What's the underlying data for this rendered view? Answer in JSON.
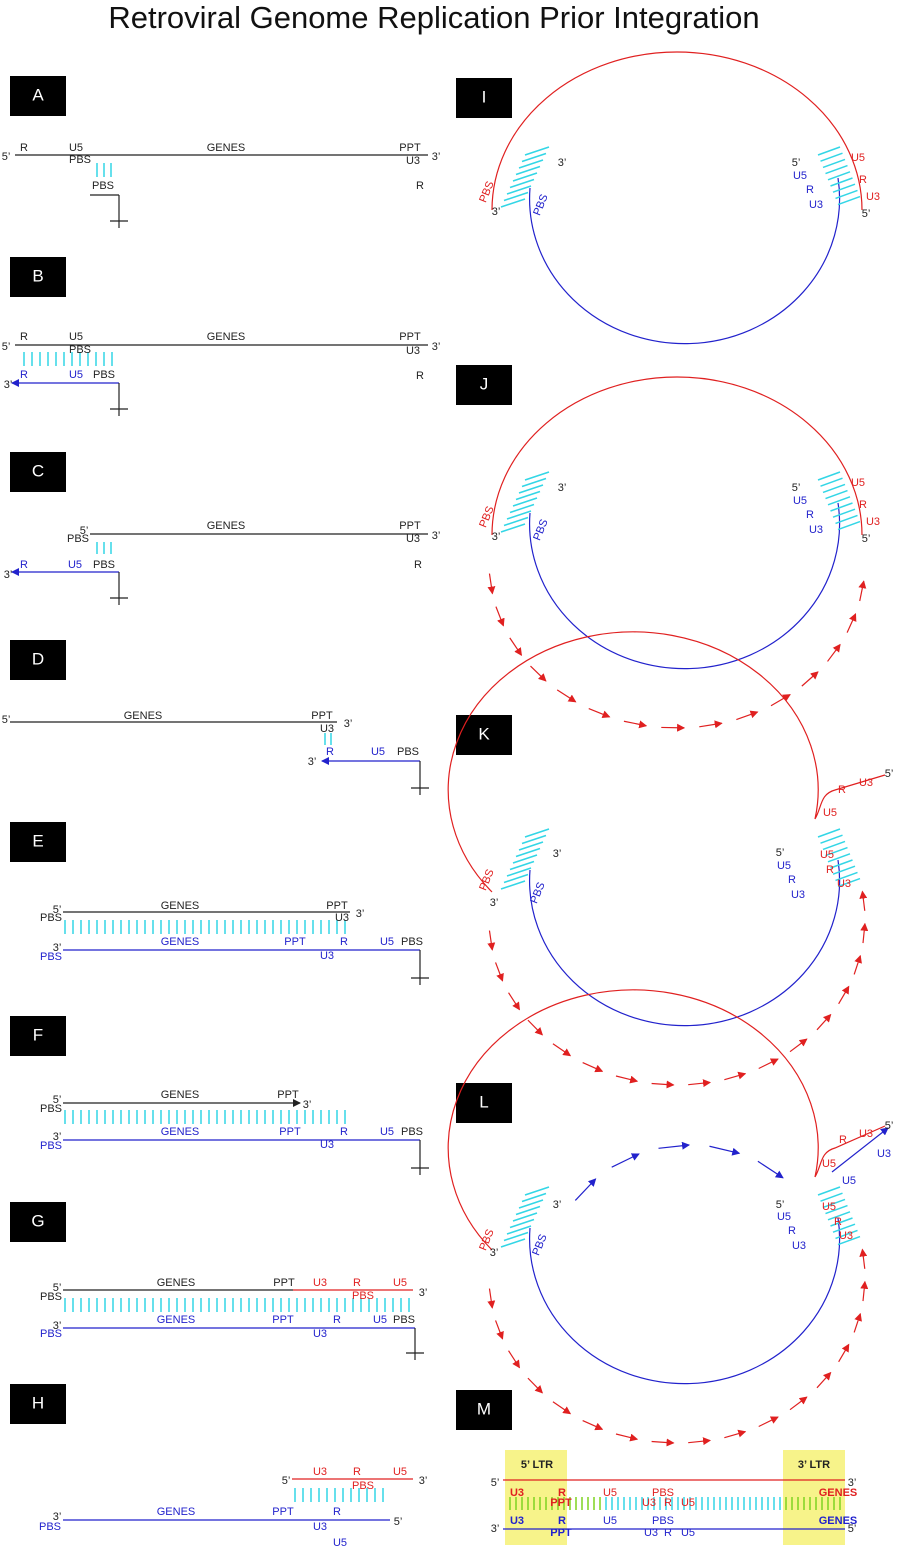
{
  "title": "Retroviral Genome Replication Prior Integration",
  "panels": [
    {
      "letter": "A",
      "labels": [
        "5’",
        "R",
        "U5",
        "GENES",
        "PPT",
        "3’",
        "PBS",
        "U3",
        "PBS",
        "R"
      ]
    },
    {
      "letter": "B",
      "labels": [
        "R",
        "U5",
        "GENES",
        "PPT",
        "5’",
        "3’",
        "PBS",
        "U3",
        "3’",
        "R",
        "U5",
        "PBS",
        "R"
      ]
    },
    {
      "letter": "C",
      "labels": [
        "5’",
        "PBS",
        "GENES",
        "PPT",
        "U3",
        "3’",
        "3’",
        "R",
        "U5",
        "PBS",
        "R"
      ]
    },
    {
      "letter": "D",
      "labels": [
        "5’",
        "GENES",
        "PPT",
        "3’",
        "U3",
        "R",
        "3’",
        "U5",
        "PBS"
      ]
    },
    {
      "letter": "E",
      "labels": [
        "5’",
        "PBS",
        "GENES",
        "PPT",
        "U3",
        "3’",
        "GENES",
        "PPT",
        "R",
        "U5",
        "PBS",
        "3’",
        "PBS",
        "U3"
      ]
    },
    {
      "letter": "F",
      "labels": [
        "5’",
        "PBS",
        "GENES",
        "PPT",
        "3’",
        "GENES",
        "PPT",
        "R",
        "U5",
        "PBS",
        "3’",
        "PBS",
        "U3"
      ]
    },
    {
      "letter": "G",
      "labels": [
        "5’",
        "PBS",
        "GENES",
        "PPT",
        "U3",
        "R",
        "U5",
        "3’",
        "PBS",
        "GENES",
        "PPT",
        "R",
        "U5",
        "PBS",
        "3’",
        "PBS",
        "U3"
      ]
    },
    {
      "letter": "H",
      "labels": [
        "5’",
        "U3",
        "R",
        "U5",
        "3’",
        "PBS",
        "GENES",
        "PPT",
        "R",
        "3’",
        "PBS",
        "5’",
        "U3",
        "U5"
      ]
    },
    {
      "letter": "I",
      "labels": [
        "PBS",
        "3’",
        "3’",
        "PBS",
        "5’",
        "U5",
        "R",
        "U3",
        "U5",
        "R",
        "U3",
        "5’"
      ]
    },
    {
      "letter": "J",
      "labels": [
        "PBS",
        "3’",
        "3’",
        "PBS",
        "5’",
        "U5",
        "R",
        "U3",
        "U5",
        "R",
        "U3",
        "5’"
      ]
    },
    {
      "letter": "K",
      "labels": [
        "PBS",
        "3’",
        "3’",
        "PBS",
        "5’",
        "U5",
        "R",
        "U3",
        "U5",
        "R",
        "U3",
        "U5",
        "R",
        "U3",
        "5’"
      ]
    },
    {
      "letter": "L",
      "labels": [
        "PBS",
        "3’",
        "3’",
        "PBS",
        "5’",
        "U5",
        "R",
        "U3",
        "U5",
        "R",
        "U3",
        "U5",
        "R",
        "U3",
        "5’",
        "U5",
        "U3"
      ]
    },
    {
      "letter": "M",
      "labels": [
        "5’ LTR",
        "3’ LTR",
        "5’",
        "3’",
        "U3",
        "R",
        "U5",
        "PBS",
        "GENES",
        "PPT",
        "U3",
        "R",
        "U5",
        "3’",
        "5’",
        "U3",
        "R",
        "U5",
        "PBS",
        "GENES",
        "PPT",
        "U3",
        "R",
        "U5"
      ]
    }
  ]
}
